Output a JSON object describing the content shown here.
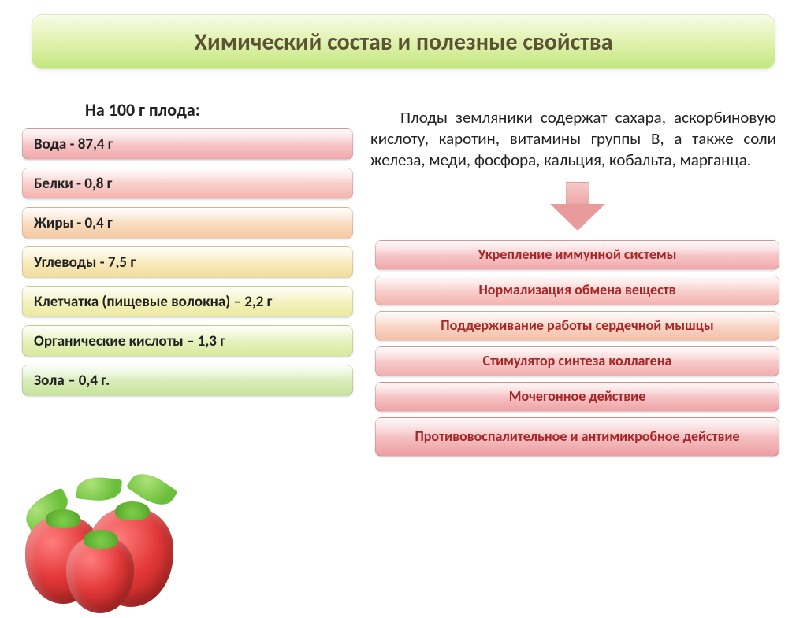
{
  "title": "Химический состав и полезные свойства",
  "title_style": {
    "fontsize": 30,
    "color": "#5c5431",
    "bg_gradient": [
      "#f6fce6",
      "#e3f3b4",
      "#c3e77e"
    ]
  },
  "left": {
    "subhead": "На 100 г плода:",
    "items": [
      {
        "label": "Вода - 87,4 г",
        "bg": [
          "#fde7e8",
          "#f1a7aa"
        ]
      },
      {
        "label": "Белки - 0,8 г",
        "bg": [
          "#fdecea",
          "#f4b3ae"
        ]
      },
      {
        "label": "Жиры - 0,4 г",
        "bg": [
          "#fdf2e4",
          "#f5c9a1"
        ]
      },
      {
        "label": "Углеводы - 7,5 г",
        "bg": [
          "#fdf8e0",
          "#f2dd9c"
        ]
      },
      {
        "label": "Клетчатка (пищевые волокна) – 2,2 г",
        "bg": [
          "#fbfbe0",
          "#ecea9e"
        ]
      },
      {
        "label": "Органические кислоты – 1,3 г",
        "bg": [
          "#f4fadf",
          "#d9e99d"
        ]
      },
      {
        "label": "Зола – 0,4 г.",
        "bg": [
          "#eef8df",
          "#c8e39b"
        ]
      }
    ]
  },
  "right": {
    "paragraph": "Плоды земляники содержат сахара, аскорбиновую кислоту, каротин, витамины группы В, а также соли железа, меди, фосфора, кальция, кобальта, марганца.",
    "paragraph_fontsize": 21,
    "arrow_color": "#e89b9b",
    "benefit_text_color": "#a52828",
    "benefits": [
      {
        "label": "Укрепление иммунной системы",
        "bg": [
          "#fde7e8",
          "#f1a7aa"
        ],
        "tall": false
      },
      {
        "label": "Нормализация обмена веществ",
        "bg": [
          "#fdecea",
          "#f4b3ae"
        ],
        "tall": false
      },
      {
        "label": "Поддерживание работы сердечной мышцы",
        "bg": [
          "#fdeee6",
          "#f5bfa8"
        ],
        "tall": false
      },
      {
        "label": "Стимулятор синтеза коллагена",
        "bg": [
          "#fde9e9",
          "#f2aeae"
        ],
        "tall": false
      },
      {
        "label": "Мочегонное действие",
        "bg": [
          "#fde5e6",
          "#efa3a6"
        ],
        "tall": false
      },
      {
        "label": "Противовоспалительное и антимикробное действие",
        "bg": [
          "#fce3e4",
          "#ed9ea1"
        ],
        "tall": true
      }
    ]
  },
  "decor": {
    "berry_color": "#e33939",
    "leaf_color": "#6bbf3a"
  }
}
